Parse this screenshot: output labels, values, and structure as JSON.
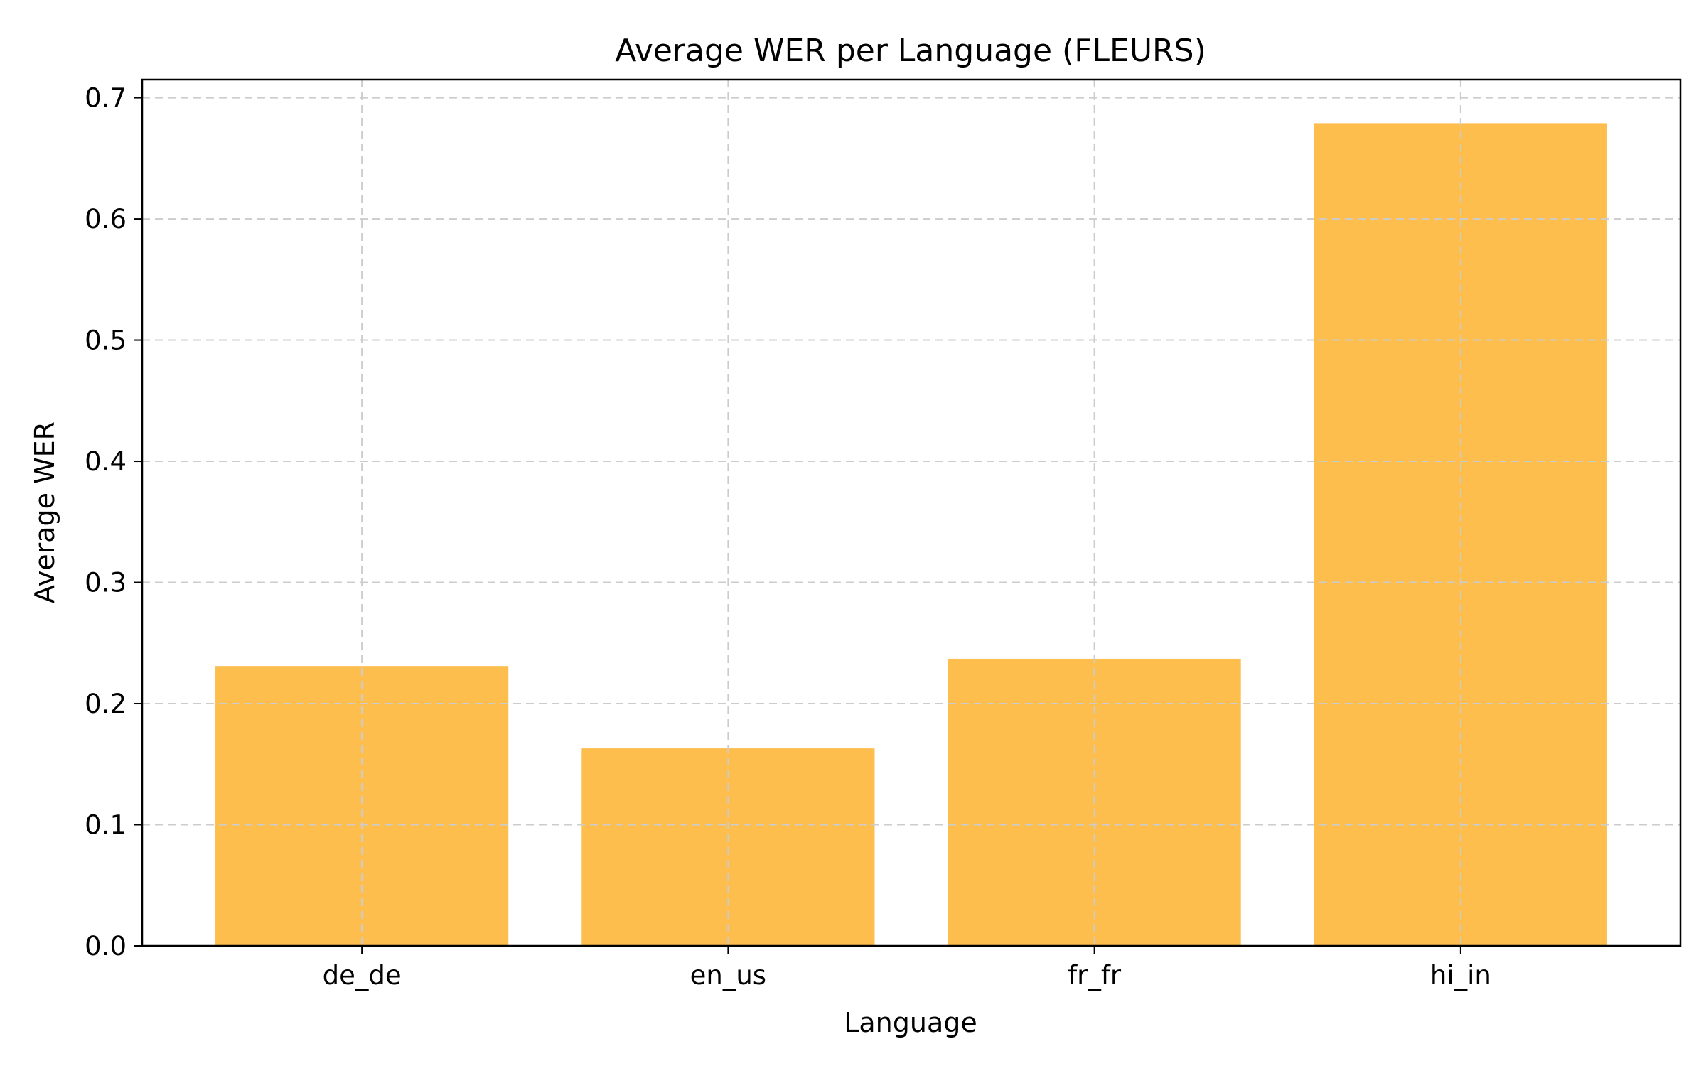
{
  "chart_data": {
    "type": "bar",
    "title": "Average WER per Language (FLEURS)",
    "xlabel": "Language",
    "ylabel": "Average WER",
    "categories": [
      "de_de",
      "en_us",
      "fr_fr",
      "hi_in"
    ],
    "values": [
      0.231,
      0.163,
      0.237,
      0.679
    ],
    "ylim": [
      0,
      0.715
    ],
    "yticks": [
      "0.0",
      "0.1",
      "0.2",
      "0.3",
      "0.4",
      "0.5",
      "0.6",
      "0.7"
    ],
    "bar_color": "#FDBE4E",
    "grid": true,
    "legend": "none"
  }
}
